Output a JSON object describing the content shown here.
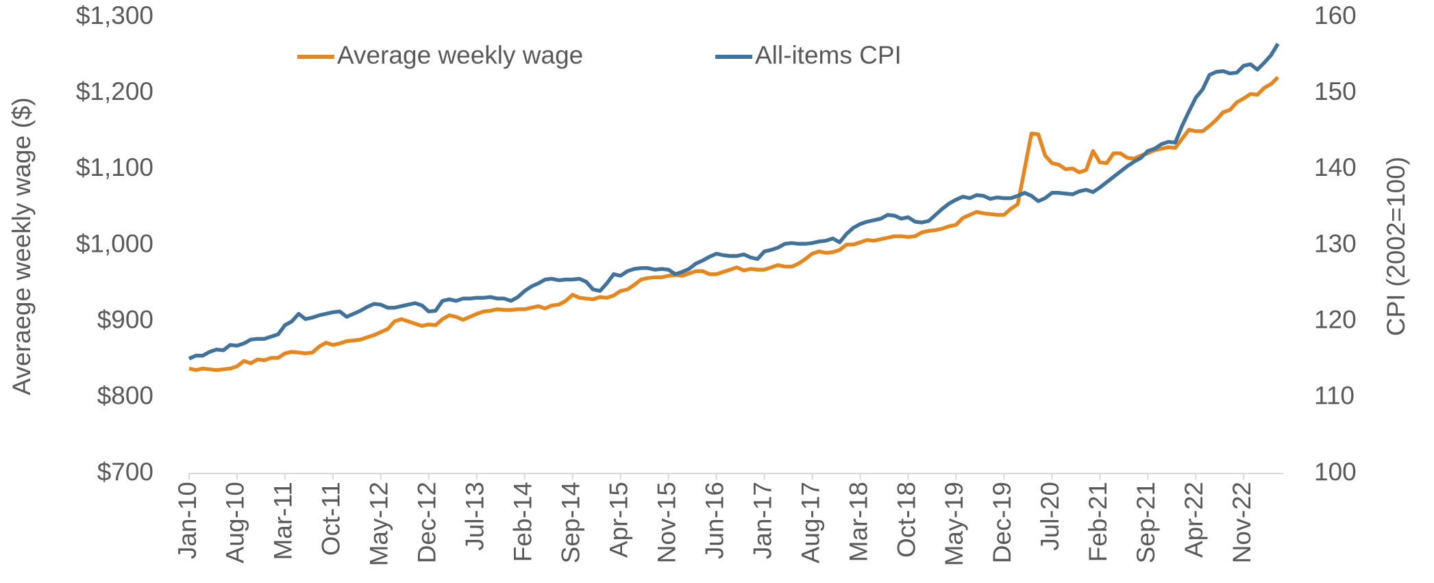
{
  "chart_data": {
    "type": "line",
    "y_label": "Averaege weekly wage ($)",
    "y2_label": "CPI (2002=100)",
    "legend": "top",
    "categories": [
      "Jan-10",
      null,
      null,
      null,
      null,
      null,
      null,
      "Aug-10",
      null,
      null,
      null,
      null,
      null,
      null,
      "Mar-11",
      null,
      null,
      null,
      null,
      null,
      null,
      "Oct-11",
      null,
      null,
      null,
      null,
      null,
      null,
      "May-12",
      null,
      null,
      null,
      null,
      null,
      null,
      "Dec-12",
      null,
      null,
      null,
      null,
      null,
      null,
      "Jul-13",
      null,
      null,
      null,
      null,
      null,
      null,
      "Feb-14",
      null,
      null,
      null,
      null,
      null,
      null,
      "Sep-14",
      null,
      null,
      null,
      null,
      null,
      null,
      "Apr-15",
      null,
      null,
      null,
      null,
      null,
      null,
      "Nov-15",
      null,
      null,
      null,
      null,
      null,
      null,
      "Jun-16",
      null,
      null,
      null,
      null,
      null,
      null,
      "Jan-17",
      null,
      null,
      null,
      null,
      null,
      null,
      "Aug-17",
      null,
      null,
      null,
      null,
      null,
      null,
      "Mar-18",
      null,
      null,
      null,
      null,
      null,
      null,
      "Oct-18",
      null,
      null,
      null,
      null,
      null,
      null,
      "May-19",
      null,
      null,
      null,
      null,
      null,
      null,
      "Dec-19",
      null,
      null,
      null,
      null,
      null,
      null,
      "Jul-20",
      null,
      null,
      null,
      null,
      null,
      null,
      "Feb-21",
      null,
      null,
      null,
      null,
      null,
      null,
      "Sep-21",
      null,
      null,
      null,
      null,
      null,
      null,
      "Apr-22",
      null,
      null,
      null,
      null,
      null,
      null,
      "Nov-22",
      null,
      null,
      null,
      null,
      null
    ],
    "series": [
      {
        "name": "Average weekly wage",
        "color": "#E8861E",
        "values": [
          838,
          836,
          838,
          837,
          836,
          837,
          838,
          841,
          848,
          845,
          850,
          849,
          852,
          852,
          858,
          860,
          859,
          858,
          859,
          867,
          872,
          869,
          871,
          874,
          875,
          876,
          879,
          882,
          886,
          890,
          900,
          903,
          900,
          897,
          894,
          896,
          895,
          903,
          908,
          906,
          902,
          906,
          910,
          913,
          914,
          916,
          915,
          915,
          916,
          916,
          918,
          920,
          917,
          921,
          922,
          927,
          935,
          931,
          930,
          929,
          932,
          931,
          934,
          940,
          942,
          948,
          955,
          957,
          958,
          958,
          960,
          961,
          960,
          963,
          966,
          966,
          962,
          962,
          965,
          968,
          971,
          967,
          969,
          968,
          968,
          971,
          974,
          972,
          972,
          976,
          982,
          989,
          992,
          990,
          991,
          994,
          1001,
          1001,
          1004,
          1007,
          1006,
          1008,
          1010,
          1012,
          1012,
          1011,
          1012,
          1017,
          1019,
          1020,
          1022,
          1025,
          1027,
          1036,
          1040,
          1044,
          1042,
          1041,
          1040,
          1040,
          1048,
          1054,
          1100,
          1147,
          1146,
          1118,
          1108,
          1106,
          1100,
          1101,
          1096,
          1099,
          1124,
          1109,
          1108,
          1121,
          1121,
          1115,
          1114,
          1118,
          1121,
          1125,
          1127,
          1129,
          1128,
          1140,
          1152,
          1150,
          1150,
          1157,
          1165,
          1175,
          1178,
          1188,
          1193,
          1199,
          1198,
          1207,
          1212,
          1221
        ]
      },
      {
        "name": "All-items CPI",
        "color": "#41729C",
        "axis": "y2",
        "values": [
          115.1,
          115.5,
          115.5,
          116.0,
          116.3,
          116.2,
          116.9,
          116.8,
          117.1,
          117.6,
          117.7,
          117.7,
          118.0,
          118.3,
          119.5,
          120.0,
          121.0,
          120.3,
          120.5,
          120.8,
          121.0,
          121.2,
          121.3,
          120.6,
          121.0,
          121.4,
          121.9,
          122.3,
          122.2,
          121.8,
          121.8,
          122.0,
          122.2,
          122.4,
          122.1,
          121.3,
          121.4,
          122.7,
          122.9,
          122.7,
          123.0,
          123.0,
          123.1,
          123.1,
          123.2,
          123.0,
          123.0,
          122.7,
          123.2,
          124.0,
          124.6,
          125.0,
          125.5,
          125.6,
          125.4,
          125.5,
          125.5,
          125.6,
          125.2,
          124.2,
          124.0,
          125.0,
          126.2,
          126.0,
          126.6,
          126.9,
          127.0,
          127.0,
          126.8,
          126.9,
          126.8,
          126.2,
          126.5,
          126.9,
          127.6,
          128.0,
          128.5,
          128.9,
          128.7,
          128.6,
          128.6,
          128.8,
          128.4,
          128.2,
          129.2,
          129.4,
          129.7,
          130.2,
          130.3,
          130.2,
          130.2,
          130.3,
          130.5,
          130.6,
          130.9,
          130.4,
          131.5,
          132.3,
          132.8,
          133.1,
          133.3,
          133.5,
          134.0,
          133.9,
          133.5,
          133.7,
          133.1,
          133.0,
          133.2,
          134.0,
          134.8,
          135.5,
          136.0,
          136.4,
          136.2,
          136.6,
          136.5,
          136.1,
          136.3,
          136.2,
          136.2,
          136.5,
          136.9,
          136.5,
          135.8,
          136.2,
          136.9,
          136.9,
          136.8,
          136.7,
          137.1,
          137.3,
          137.0,
          137.6,
          138.3,
          139.0,
          139.7,
          140.4,
          141.0,
          141.5,
          142.4,
          142.7,
          143.3,
          143.6,
          143.5,
          145.7,
          147.6,
          149.4,
          150.5,
          152.4,
          152.8,
          152.9,
          152.6,
          152.7,
          153.6,
          153.8,
          153.1,
          154.0,
          155.0,
          156.5
        ]
      }
    ],
    "ylim": [
      700,
      1300
    ],
    "yticks": [
      {
        "value": 700,
        "label": "$700"
      },
      {
        "value": 800,
        "label": "$800"
      },
      {
        "value": 900,
        "label": "$900"
      },
      {
        "value": 1000,
        "label": "$1,000"
      },
      {
        "value": 1100,
        "label": "$1,100"
      },
      {
        "value": 1200,
        "label": "$1,200"
      },
      {
        "value": 1300,
        "label": "$1,300"
      }
    ],
    "y2lim": [
      100,
      160
    ],
    "y2ticks": [
      100,
      110,
      120,
      130,
      140,
      150,
      160
    ]
  }
}
